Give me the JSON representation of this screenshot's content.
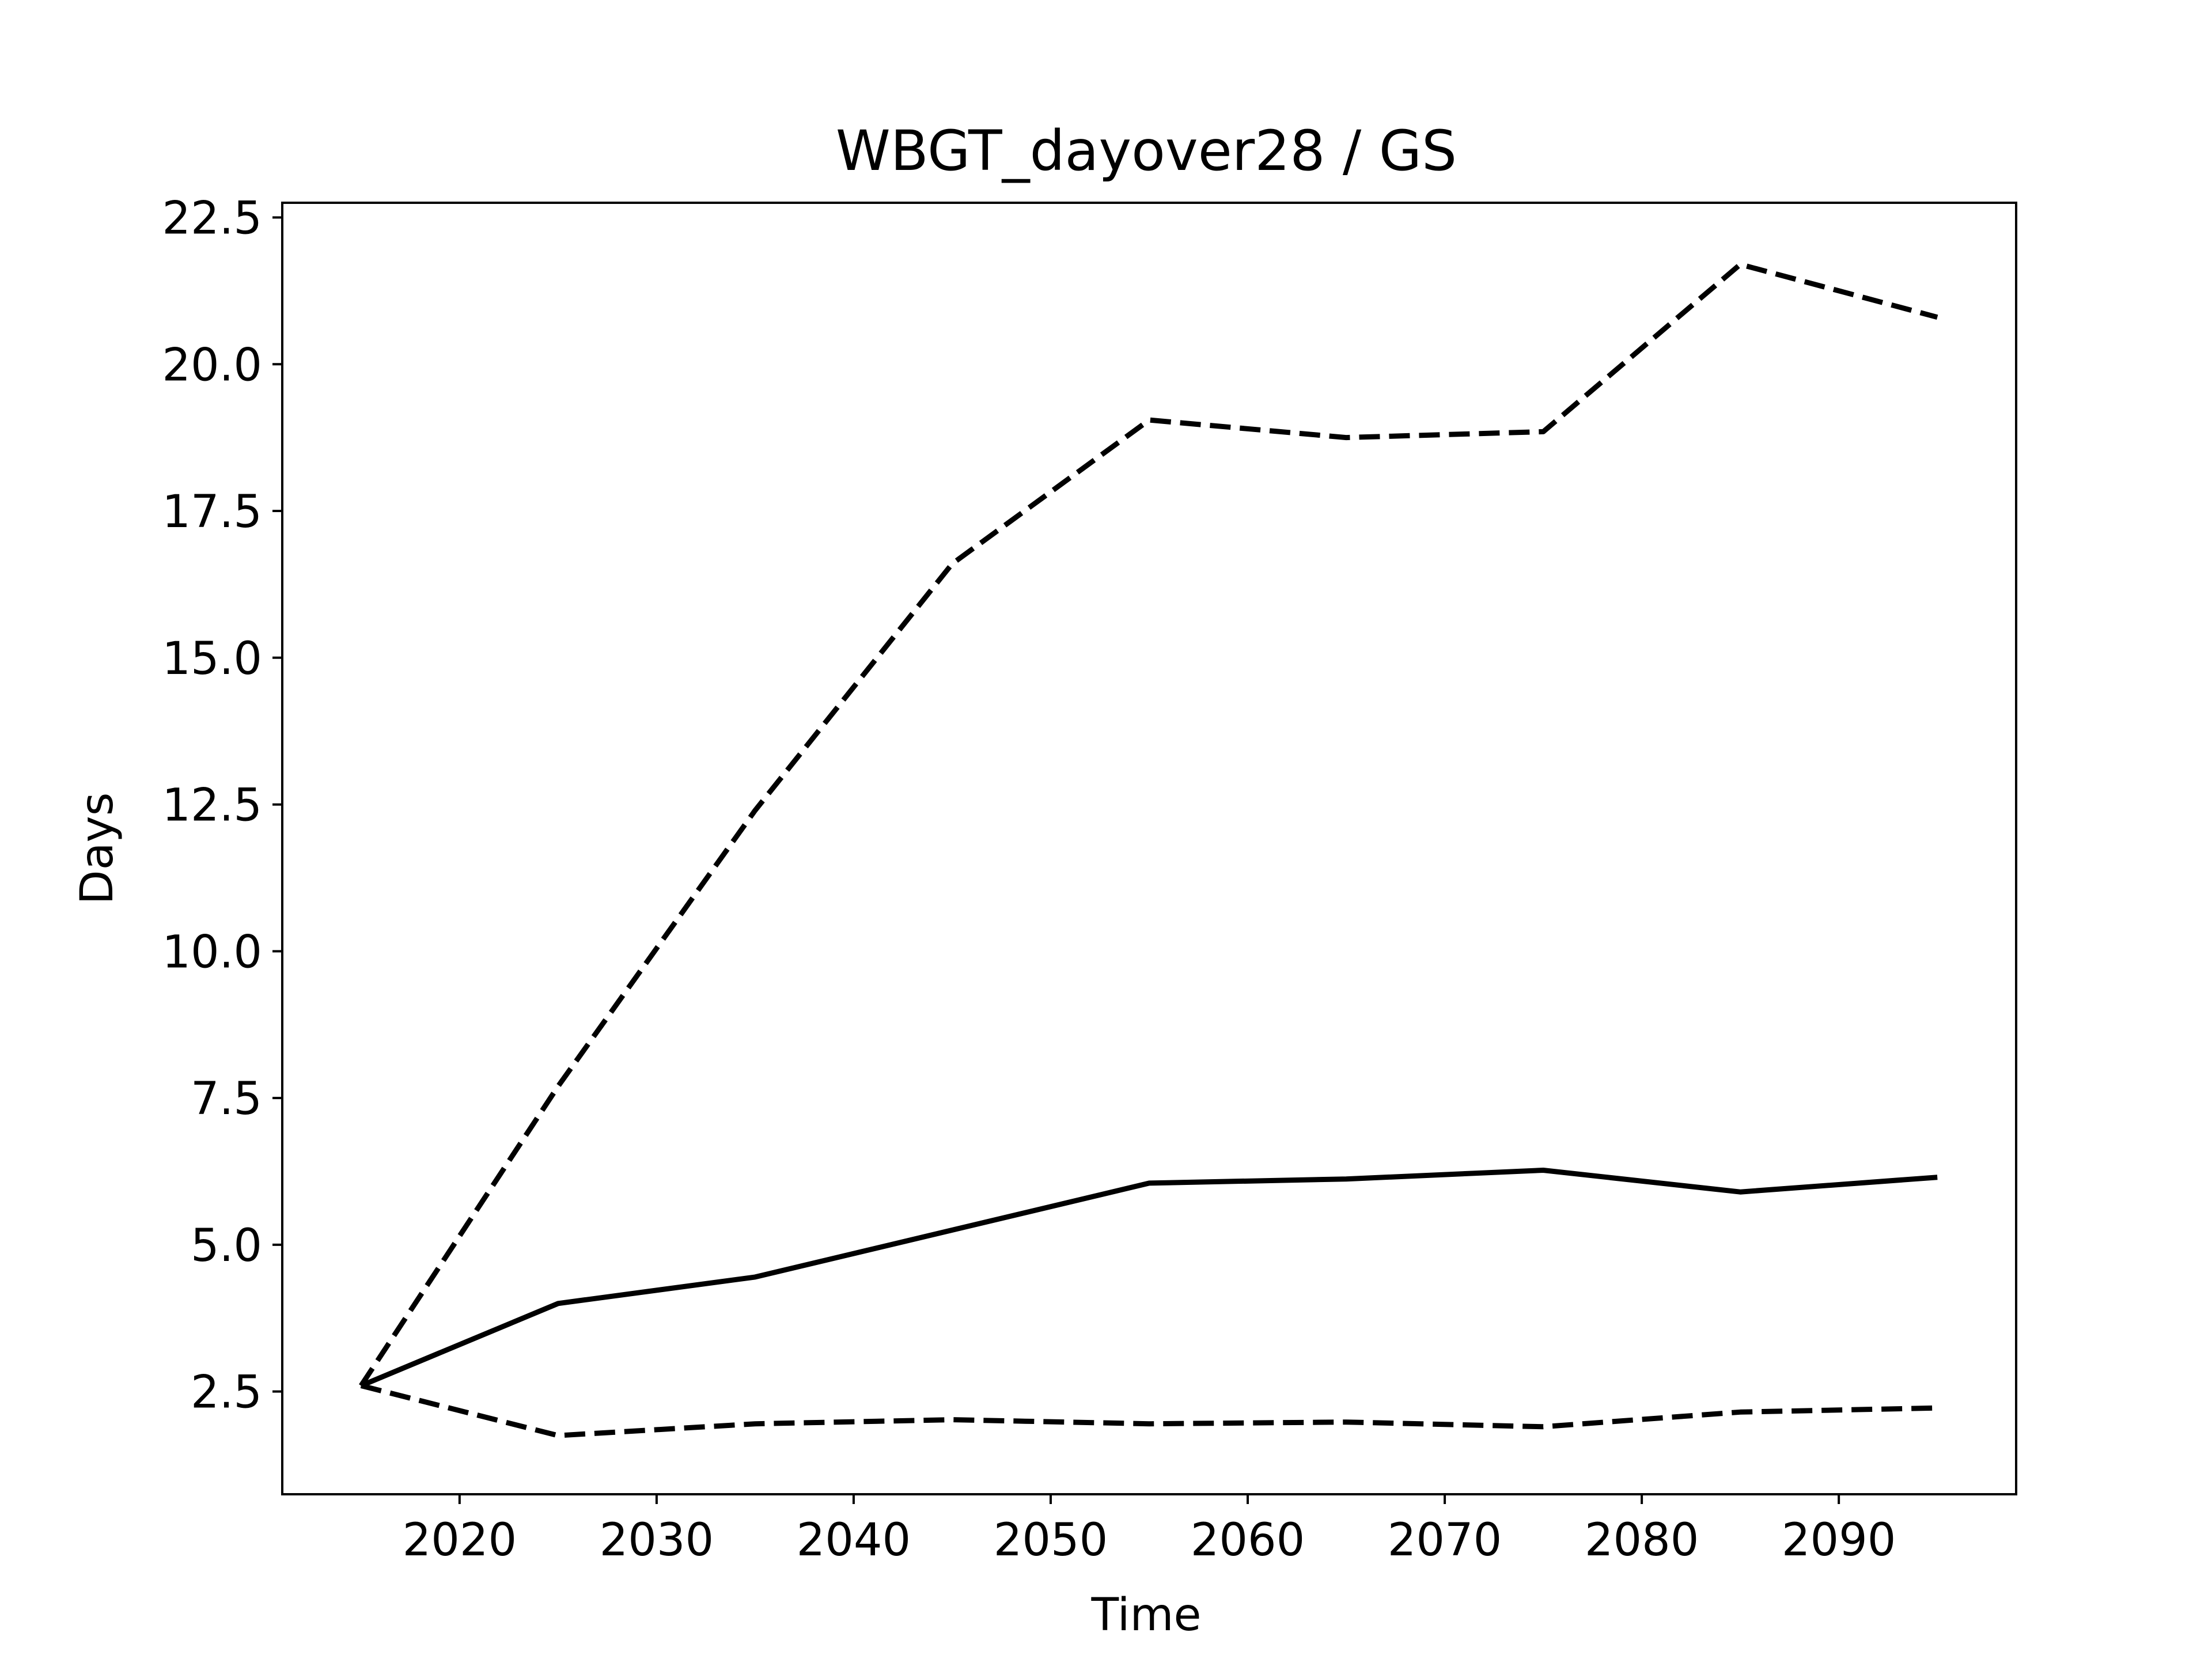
{
  "chart_data": {
    "type": "line",
    "title": "WBGT_dayover28 / GS",
    "xlabel": "Time",
    "ylabel": "Days",
    "xlim": [
      2011,
      2099
    ],
    "ylim": [
      0.75,
      22.75
    ],
    "xticks": [
      2020,
      2030,
      2040,
      2050,
      2060,
      2070,
      2080,
      2090
    ],
    "yticks": [
      2.5,
      5.0,
      7.5,
      10.0,
      12.5,
      15.0,
      17.5,
      20.0,
      22.5
    ],
    "ytick_labels": [
      "2.5",
      "5.0",
      "7.5",
      "10.0",
      "12.5",
      "15.0",
      "17.5",
      "20.0",
      "22.5"
    ],
    "grid": false,
    "x": [
      2015,
      2025,
      2035,
      2045,
      2055,
      2065,
      2075,
      2085,
      2095
    ],
    "series": [
      {
        "style": "solid",
        "color": "#000000",
        "values": [
          2.6,
          4.0,
          4.45,
          5.25,
          6.05,
          6.12,
          6.27,
          5.9,
          6.15
        ]
      },
      {
        "style": "dashed",
        "color": "#000000",
        "values": [
          2.6,
          7.7,
          12.4,
          16.6,
          19.05,
          18.75,
          18.85,
          21.7,
          20.8
        ]
      },
      {
        "style": "dashed",
        "color": "#000000",
        "values": [
          2.6,
          1.75,
          1.95,
          2.02,
          1.95,
          1.98,
          1.9,
          2.15,
          2.22
        ]
      }
    ]
  }
}
